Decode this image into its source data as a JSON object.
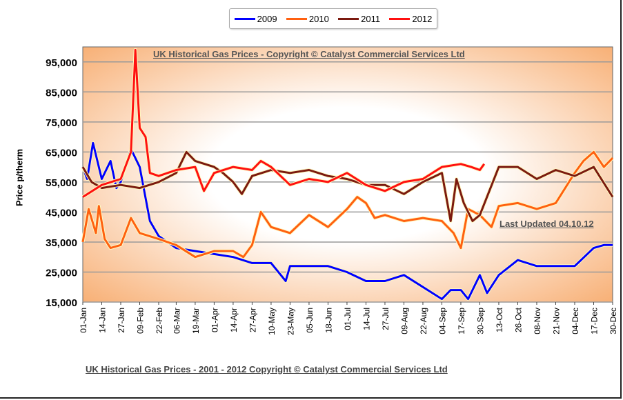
{
  "chart_data": {
    "type": "line",
    "title": "UK Historical Gas Prices - Copyright © Catalyst Commercial Services Ltd",
    "annotation": "Last Updated 04.10.12",
    "footer": "UK Historical Gas Prices - 2001 - 2012 Copyright © Catalyst Commercial Services Ltd",
    "xlabel": "",
    "ylabel": "Price p/therm",
    "ylim": [
      15000,
      100000
    ],
    "yticks": [
      "15,000",
      "25,000",
      "35,000",
      "45,000",
      "55,000",
      "65,000",
      "75,000",
      "85,000",
      "95,000"
    ],
    "ytick_values": [
      15000,
      25000,
      35000,
      45000,
      55000,
      65000,
      75000,
      85000,
      95000
    ],
    "xticks": [
      "01-Jan",
      "14-Jan",
      "27-Jan",
      "09-Feb",
      "22-Feb",
      "06-Mar",
      "19-Mar",
      "01-Apr",
      "14-Apr",
      "27-Apr",
      "10-May",
      "23-May",
      "05-Jun",
      "18-Jun",
      "01-Jul",
      "14-Jul",
      "27-Jul",
      "09-Aug",
      "22-Aug",
      "04-Sep",
      "17-Sep",
      "30-Sep",
      "13-Oct",
      "26-Oct",
      "08-Nov",
      "21-Nov",
      "04-Dec",
      "17-Dec",
      "30-Dec"
    ],
    "grid": true,
    "legend_position": "top",
    "series": [
      {
        "name": "2009",
        "color": "#0000ff",
        "points": [
          [
            "01-Jan",
            60000
          ],
          [
            "04-Jan",
            56000
          ],
          [
            "08-Jan",
            68000
          ],
          [
            "14-Jan",
            56000
          ],
          [
            "20-Jan",
            62000
          ],
          [
            "24-Jan",
            53000
          ],
          [
            "27-Jan",
            55000
          ],
          [
            "03-Feb",
            66000
          ],
          [
            "09-Feb",
            60000
          ],
          [
            "16-Feb",
            42000
          ],
          [
            "22-Feb",
            37000
          ],
          [
            "06-Mar",
            33000
          ],
          [
            "19-Mar",
            32000
          ],
          [
            "01-Apr",
            31000
          ],
          [
            "14-Apr",
            30000
          ],
          [
            "27-Apr",
            28000
          ],
          [
            "10-May",
            28000
          ],
          [
            "20-May",
            22000
          ],
          [
            "23-May",
            27000
          ],
          [
            "05-Jun",
            27000
          ],
          [
            "18-Jun",
            27000
          ],
          [
            "01-Jul",
            25000
          ],
          [
            "14-Jul",
            22000
          ],
          [
            "27-Jul",
            22000
          ],
          [
            "09-Aug",
            24000
          ],
          [
            "22-Aug",
            20000
          ],
          [
            "04-Sep",
            16000
          ],
          [
            "10-Sep",
            19000
          ],
          [
            "17-Sep",
            19000
          ],
          [
            "22-Sep",
            16000
          ],
          [
            "30-Sep",
            24000
          ],
          [
            "05-Oct",
            18000
          ],
          [
            "13-Oct",
            24000
          ],
          [
            "26-Oct",
            29000
          ],
          [
            "08-Nov",
            27000
          ],
          [
            "21-Nov",
            27000
          ],
          [
            "04-Dec",
            27000
          ],
          [
            "17-Dec",
            33000
          ],
          [
            "24-Dec",
            34000
          ],
          [
            "30-Dec",
            34000
          ]
        ]
      },
      {
        "name": "2010",
        "color": "#ff6010",
        "points": [
          [
            "01-Jan",
            35000
          ],
          [
            "05-Jan",
            46000
          ],
          [
            "10-Jan",
            38000
          ],
          [
            "12-Jan",
            47000
          ],
          [
            "16-Jan",
            36000
          ],
          [
            "20-Jan",
            33000
          ],
          [
            "27-Jan",
            34000
          ],
          [
            "03-Feb",
            43000
          ],
          [
            "09-Feb",
            38000
          ],
          [
            "22-Feb",
            36000
          ],
          [
            "06-Mar",
            34000
          ],
          [
            "19-Mar",
            30000
          ],
          [
            "01-Apr",
            32000
          ],
          [
            "14-Apr",
            32000
          ],
          [
            "21-Apr",
            30000
          ],
          [
            "27-Apr",
            34000
          ],
          [
            "03-May",
            45000
          ],
          [
            "10-May",
            40000
          ],
          [
            "23-May",
            38000
          ],
          [
            "05-Jun",
            44000
          ],
          [
            "18-Jun",
            40000
          ],
          [
            "01-Jul",
            46000
          ],
          [
            "08-Jul",
            50000
          ],
          [
            "14-Jul",
            48000
          ],
          [
            "20-Jul",
            43000
          ],
          [
            "27-Jul",
            44000
          ],
          [
            "09-Aug",
            42000
          ],
          [
            "22-Aug",
            43000
          ],
          [
            "04-Sep",
            42000
          ],
          [
            "12-Sep",
            38000
          ],
          [
            "17-Sep",
            33000
          ],
          [
            "22-Sep",
            46000
          ],
          [
            "30-Sep",
            44000
          ],
          [
            "08-Oct",
            40000
          ],
          [
            "13-Oct",
            47000
          ],
          [
            "26-Oct",
            48000
          ],
          [
            "08-Nov",
            46000
          ],
          [
            "21-Nov",
            48000
          ],
          [
            "04-Dec",
            58000
          ],
          [
            "10-Dec",
            62000
          ],
          [
            "17-Dec",
            65000
          ],
          [
            "24-Dec",
            60000
          ],
          [
            "30-Dec",
            63000
          ]
        ]
      },
      {
        "name": "2011",
        "color": "#7b1a10",
        "points": [
          [
            "01-Jan",
            60000
          ],
          [
            "07-Jan",
            55000
          ],
          [
            "14-Jan",
            53000
          ],
          [
            "27-Jan",
            54000
          ],
          [
            "09-Feb",
            53000
          ],
          [
            "22-Feb",
            55000
          ],
          [
            "06-Mar",
            58000
          ],
          [
            "13-Mar",
            65000
          ],
          [
            "19-Mar",
            62000
          ],
          [
            "01-Apr",
            60000
          ],
          [
            "07-Apr",
            58000
          ],
          [
            "14-Apr",
            55000
          ],
          [
            "20-Apr",
            51000
          ],
          [
            "27-Apr",
            57000
          ],
          [
            "10-May",
            59000
          ],
          [
            "23-May",
            58000
          ],
          [
            "05-Jun",
            59000
          ],
          [
            "18-Jun",
            57000
          ],
          [
            "01-Jul",
            56000
          ],
          [
            "14-Jul",
            54000
          ],
          [
            "27-Jul",
            54000
          ],
          [
            "09-Aug",
            51000
          ],
          [
            "22-Aug",
            55000
          ],
          [
            "04-Sep",
            58000
          ],
          [
            "10-Sep",
            42000
          ],
          [
            "14-Sep",
            56000
          ],
          [
            "19-Sep",
            48000
          ],
          [
            "25-Sep",
            42000
          ],
          [
            "30-Sep",
            44000
          ],
          [
            "13-Oct",
            60000
          ],
          [
            "26-Oct",
            60000
          ],
          [
            "08-Nov",
            56000
          ],
          [
            "21-Nov",
            59000
          ],
          [
            "04-Dec",
            57000
          ],
          [
            "17-Dec",
            60000
          ],
          [
            "30-Dec",
            50000
          ]
        ]
      },
      {
        "name": "2012",
        "color": "#ff1010",
        "points": [
          [
            "01-Jan",
            50000
          ],
          [
            "14-Jan",
            54000
          ],
          [
            "27-Jan",
            56000
          ],
          [
            "03-Feb",
            65000
          ],
          [
            "06-Feb",
            99000
          ],
          [
            "09-Feb",
            73000
          ],
          [
            "13-Feb",
            70000
          ],
          [
            "16-Feb",
            58000
          ],
          [
            "22-Feb",
            57000
          ],
          [
            "06-Mar",
            59000
          ],
          [
            "19-Mar",
            60000
          ],
          [
            "25-Mar",
            52000
          ],
          [
            "01-Apr",
            58000
          ],
          [
            "14-Apr",
            60000
          ],
          [
            "27-Apr",
            59000
          ],
          [
            "03-May",
            62000
          ],
          [
            "10-May",
            60000
          ],
          [
            "23-May",
            54000
          ],
          [
            "05-Jun",
            56000
          ],
          [
            "18-Jun",
            55000
          ],
          [
            "01-Jul",
            58000
          ],
          [
            "14-Jul",
            54000
          ],
          [
            "27-Jul",
            52000
          ],
          [
            "09-Aug",
            55000
          ],
          [
            "22-Aug",
            56000
          ],
          [
            "04-Sep",
            60000
          ],
          [
            "17-Sep",
            61000
          ],
          [
            "24-Sep",
            60000
          ],
          [
            "30-Sep",
            59000
          ],
          [
            "03-Oct",
            61000
          ]
        ]
      }
    ]
  }
}
